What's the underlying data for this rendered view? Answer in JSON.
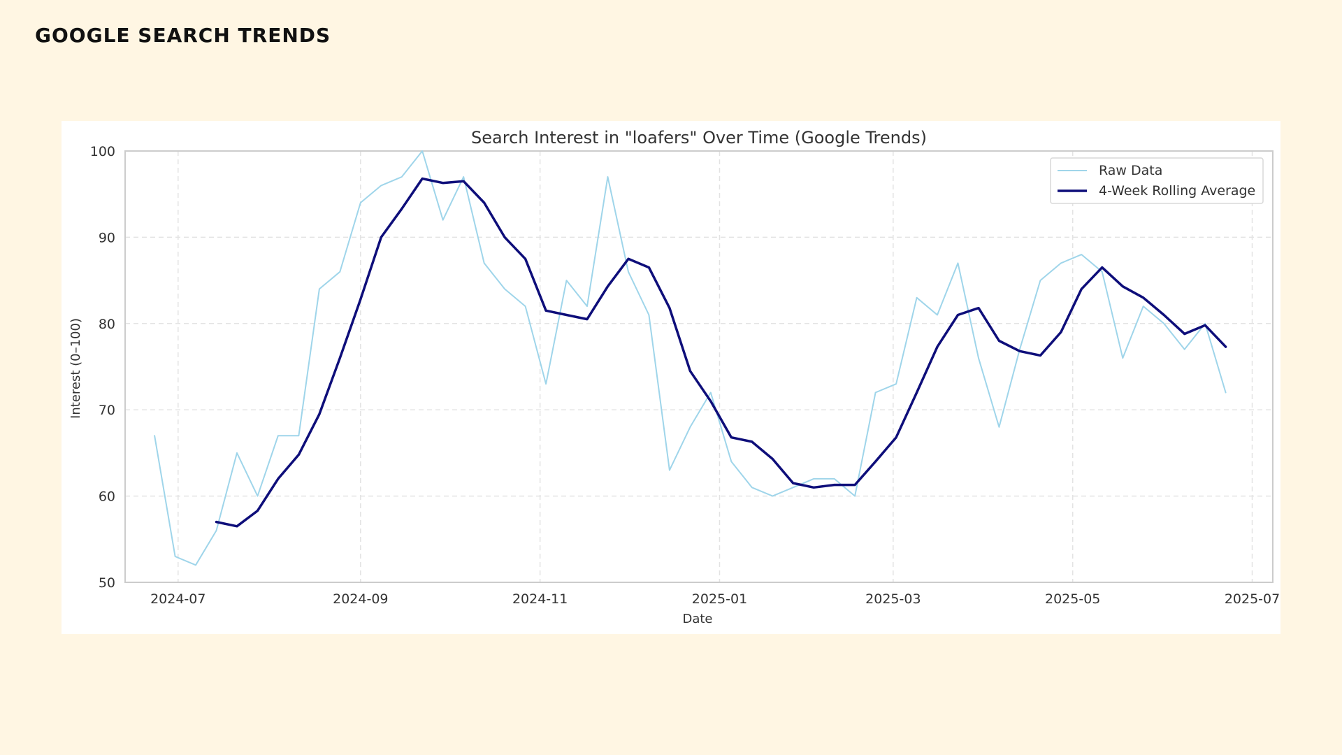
{
  "page": {
    "heading": "GOOGLE SEARCH TRENDS"
  },
  "chart_data": {
    "type": "line",
    "title": "Search Interest in \"loafers\" Over Time (Google Trends)",
    "xlabel": "Date",
    "ylabel": "Interest (0–100)",
    "ylim": [
      50,
      100
    ],
    "yticks": [
      50,
      60,
      70,
      80,
      90,
      100
    ],
    "xlim": [
      "2024-06-13",
      "2025-07-08"
    ],
    "xticks": [
      {
        "label": "2024-07",
        "date": "2024-07-01"
      },
      {
        "label": "2024-09",
        "date": "2024-09-01"
      },
      {
        "label": "2024-11",
        "date": "2024-11-01"
      },
      {
        "label": "2025-01",
        "date": "2025-01-01"
      },
      {
        "label": "2025-03",
        "date": "2025-03-01"
      },
      {
        "label": "2025-05",
        "date": "2025-05-01"
      },
      {
        "label": "2025-07",
        "date": "2025-07-01"
      }
    ],
    "grid": true,
    "legend_position": "top-right",
    "x": [
      "2024-06-23",
      "2024-06-30",
      "2024-07-07",
      "2024-07-14",
      "2024-07-21",
      "2024-07-28",
      "2024-08-04",
      "2024-08-11",
      "2024-08-18",
      "2024-08-25",
      "2024-09-01",
      "2024-09-08",
      "2024-09-15",
      "2024-09-22",
      "2024-09-29",
      "2024-10-06",
      "2024-10-13",
      "2024-10-20",
      "2024-10-27",
      "2024-11-03",
      "2024-11-10",
      "2024-11-17",
      "2024-11-24",
      "2024-12-01",
      "2024-12-08",
      "2024-12-15",
      "2024-12-22",
      "2024-12-29",
      "2025-01-05",
      "2025-01-12",
      "2025-01-19",
      "2025-01-26",
      "2025-02-02",
      "2025-02-09",
      "2025-02-16",
      "2025-02-23",
      "2025-03-02",
      "2025-03-09",
      "2025-03-16",
      "2025-03-23",
      "2025-03-30",
      "2025-04-06",
      "2025-04-13",
      "2025-04-20",
      "2025-04-27",
      "2025-05-04",
      "2025-05-11",
      "2025-05-18",
      "2025-05-25",
      "2025-06-01",
      "2025-06-08",
      "2025-06-15",
      "2025-06-22"
    ],
    "series": [
      {
        "name": "Raw Data",
        "color": "#9fd5ea",
        "values": [
          67,
          53,
          52,
          56,
          65,
          60,
          67,
          67,
          84,
          86,
          94,
          96,
          97,
          100,
          92,
          97,
          87,
          84,
          82,
          73,
          85,
          82,
          97,
          86,
          81,
          63,
          68,
          72,
          64,
          61,
          60,
          61,
          62,
          62,
          60,
          72,
          73,
          83,
          81,
          87,
          76,
          68,
          77,
          85,
          87,
          88,
          86,
          76,
          82,
          80,
          77,
          80,
          72
        ]
      },
      {
        "name": "4-Week Rolling Average",
        "color": "#0e0e7a",
        "values": [
          null,
          null,
          null,
          57.0,
          56.5,
          58.3,
          62.0,
          64.8,
          69.5,
          76.0,
          82.8,
          90.0,
          93.3,
          96.8,
          96.3,
          96.5,
          94.0,
          90.0,
          87.5,
          81.5,
          81.0,
          80.5,
          84.3,
          87.5,
          86.5,
          81.8,
          74.5,
          71.0,
          66.8,
          66.3,
          64.3,
          61.5,
          61.0,
          61.3,
          61.3,
          64.0,
          66.8,
          72.0,
          77.3,
          81.0,
          81.8,
          78.0,
          76.8,
          76.3,
          79.0,
          84.0,
          86.5,
          84.3,
          83.0,
          81.0,
          78.8,
          79.8,
          77.3
        ]
      }
    ]
  }
}
